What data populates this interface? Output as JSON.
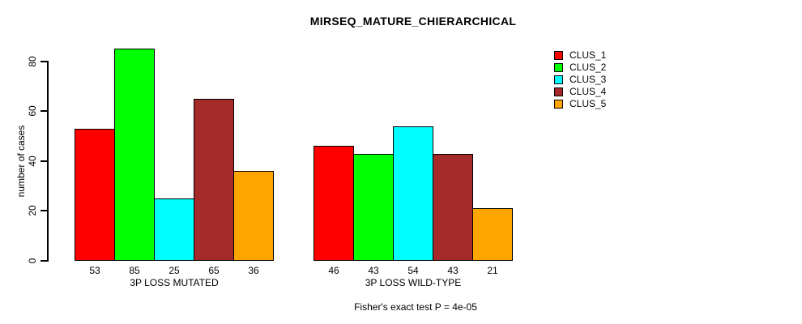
{
  "chart_data": {
    "type": "bar",
    "title": "MIRSEQ_MATURE_CHIERARCHICAL",
    "ylabel": "number of cases",
    "xlabel": "",
    "ylim": [
      0,
      85
    ],
    "yticks": [
      0,
      20,
      40,
      60,
      80
    ],
    "grid": false,
    "show_values": true,
    "legend_position": "right",
    "categories": [
      "3P LOSS MUTATED",
      "3P LOSS WILD-TYPE"
    ],
    "series": [
      {
        "name": "CLUS_1",
        "color": "#FF0000",
        "values": [
          53,
          46
        ]
      },
      {
        "name": "CLUS_2",
        "color": "#00FF00",
        "values": [
          85,
          43
        ]
      },
      {
        "name": "CLUS_3",
        "color": "#00FFFF",
        "values": [
          25,
          54
        ]
      },
      {
        "name": "CLUS_4",
        "color": "#A52A2A",
        "values": [
          65,
          43
        ]
      },
      {
        "name": "CLUS_5",
        "color": "#FFA500",
        "values": [
          36,
          21
        ]
      }
    ],
    "annotation": "Fisher's exact test P = 4e-05",
    "axis_color": "#000000",
    "bar_border_color": "#000000"
  }
}
